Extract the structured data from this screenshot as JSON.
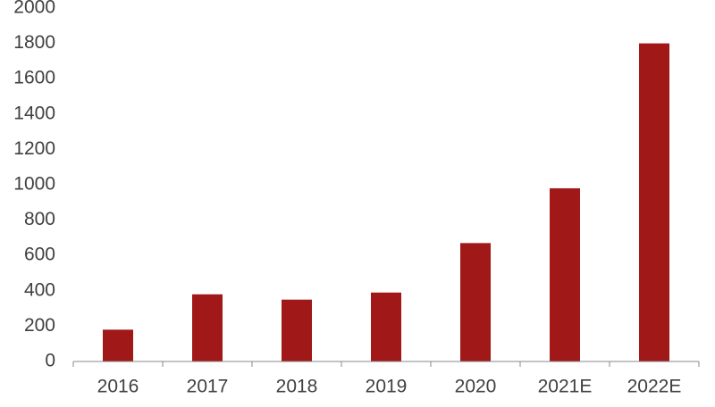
{
  "chart_data": {
    "type": "bar",
    "categories": [
      "2016",
      "2017",
      "2018",
      "2019",
      "2020",
      "2021E",
      "2022E"
    ],
    "values": [
      180,
      380,
      350,
      390,
      670,
      980,
      1800
    ],
    "color": "#a01818",
    "ylim": [
      0,
      2000
    ],
    "yticks": [
      0,
      200,
      400,
      600,
      800,
      1000,
      1200,
      1400,
      1600,
      1800,
      2000
    ],
    "grid": false
  }
}
